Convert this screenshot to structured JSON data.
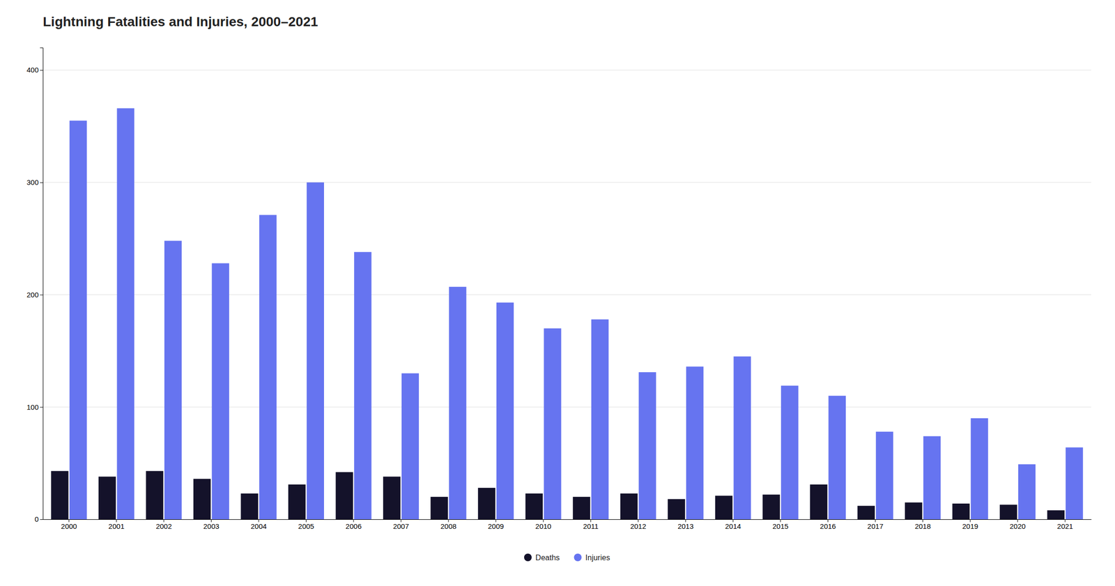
{
  "chart_data": {
    "type": "bar",
    "title": "Lightning Fatalities and Injuries, 2000–2021",
    "categories": [
      "2000",
      "2001",
      "2002",
      "2003",
      "2004",
      "2005",
      "2006",
      "2007",
      "2008",
      "2009",
      "2010",
      "2011",
      "2012",
      "2013",
      "2014",
      "2015",
      "2016",
      "2017",
      "2018",
      "2019",
      "2020",
      "2021"
    ],
    "series": [
      {
        "name": "Deaths",
        "color": "#14122a",
        "values": [
          43,
          38,
          43,
          36,
          23,
          31,
          42,
          38,
          20,
          28,
          23,
          20,
          23,
          18,
          21,
          22,
          31,
          12,
          15,
          14,
          13,
          8
        ]
      },
      {
        "name": "Injuries",
        "color": "#6674f0",
        "values": [
          355,
          366,
          248,
          228,
          271,
          300,
          238,
          130,
          207,
          193,
          170,
          178,
          131,
          136,
          145,
          119,
          110,
          78,
          74,
          90,
          49,
          64
        ]
      }
    ],
    "ylim": [
      0,
      420
    ],
    "yticks": [
      0,
      100,
      200,
      300,
      400
    ],
    "grid": true,
    "legend": "bottom"
  }
}
